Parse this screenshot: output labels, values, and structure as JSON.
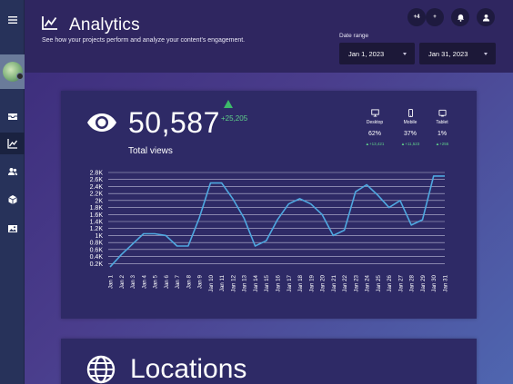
{
  "colors": {
    "accent_green": "#3dba6a",
    "line": "#4fa8e0",
    "grid": "#d9d7ee"
  },
  "sidebar": {
    "items": [
      {
        "icon": "menu-icon"
      },
      {
        "icon": "avatar"
      },
      {
        "icon": "inbox-icon"
      },
      {
        "icon": "chart-icon"
      },
      {
        "icon": "users-icon"
      },
      {
        "icon": "cube-icon"
      },
      {
        "icon": "image-icon"
      }
    ]
  },
  "header": {
    "title": "Analytics",
    "subtitle": "See how your projects perform and analyze your content's engagement.",
    "badge_more": "+4",
    "add_label": "+",
    "date_range_label": "Date range",
    "date_start": "Jan 1, 2023",
    "date_end": "Jan 31, 2023"
  },
  "views_card": {
    "total": "50,587",
    "delta": "+25,205",
    "label": "Total views",
    "devices": [
      {
        "name": "Desktop",
        "pct": "62%",
        "change": "▲+13,421",
        "icon": "desktop-icon"
      },
      {
        "name": "Mobile",
        "pct": "37%",
        "change": "▲+11,523",
        "icon": "mobile-icon"
      },
      {
        "name": "Tablet",
        "pct": "1%",
        "change": "▲+255",
        "icon": "tablet-icon"
      }
    ]
  },
  "chart_data": {
    "type": "line",
    "title": "",
    "xlabel": "",
    "ylabel": "",
    "categories": [
      "Jan 1",
      "Jan 2",
      "Jan 3",
      "Jan 4",
      "Jan 5",
      "Jan 6",
      "Jan 7",
      "Jan 8",
      "Jan 9",
      "Jan 10",
      "Jan 11",
      "Jan 12",
      "Jan 13",
      "Jan 14",
      "Jan 15",
      "Jan 16",
      "Jan 17",
      "Jan 18",
      "Jan 19",
      "Jan 20",
      "Jan 21",
      "Jan 22",
      "Jan 23",
      "Jan 24",
      "Jan 25",
      "Jan 26",
      "Jan 27",
      "Jan 28",
      "Jan 29",
      "Jan 30",
      "Jan 31"
    ],
    "values": [
      100,
      450,
      750,
      1050,
      1050,
      1000,
      700,
      700,
      1500,
      2500,
      2500,
      2050,
      1500,
      700,
      850,
      1450,
      1900,
      2050,
      1900,
      1600,
      1000,
      1150,
      2250,
      2450,
      2150,
      1800,
      2000,
      1300,
      1450,
      2700,
      2700
    ],
    "yticks": [
      "0.2K",
      "0.4K",
      "0.6K",
      "0.8K",
      "1K",
      "1.2K",
      "1.4K",
      "1.6K",
      "1.8K",
      "2K",
      "2.2K",
      "2.4K",
      "2.6K",
      "2.8K"
    ],
    "ytick_values": [
      200,
      400,
      600,
      800,
      1000,
      1200,
      1400,
      1600,
      1800,
      2000,
      2200,
      2400,
      2600,
      2800
    ],
    "ylim": [
      0,
      2800
    ],
    "grid": true,
    "legend": "none"
  },
  "locations_card": {
    "title": "Locations"
  }
}
